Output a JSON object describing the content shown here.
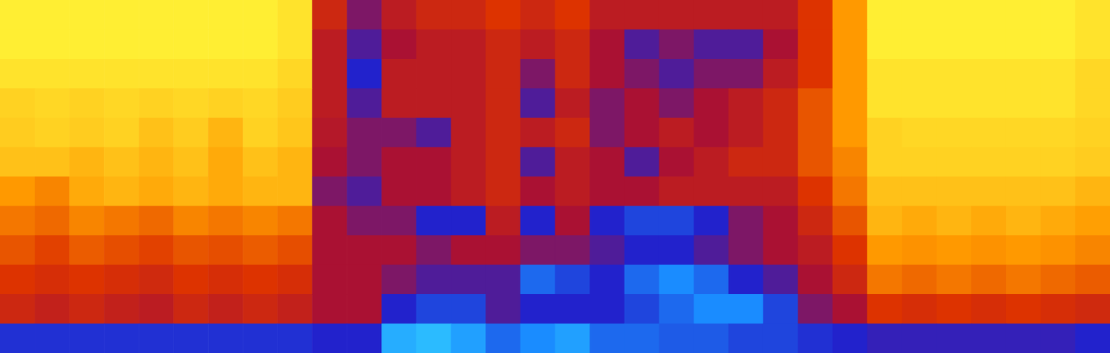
{
  "chart_data": {
    "type": "heatmap",
    "tick_labels": false,
    "zlim": [
      0,
      100
    ],
    "z": [
      [
        90,
        90,
        90,
        90,
        90,
        90,
        90,
        90,
        88,
        55,
        40,
        50,
        55,
        55,
        60,
        55,
        60,
        50,
        50,
        50,
        50,
        50,
        50,
        60,
        75,
        90,
        90,
        90,
        90,
        90,
        90,
        88
      ],
      [
        90,
        90,
        90,
        90,
        90,
        90,
        90,
        90,
        88,
        50,
        35,
        45,
        50,
        50,
        55,
        50,
        55,
        45,
        35,
        40,
        35,
        35,
        45,
        60,
        75,
        90,
        90,
        90,
        90,
        90,
        90,
        88
      ],
      [
        88,
        88,
        88,
        88,
        88,
        88,
        88,
        88,
        86,
        50,
        30,
        50,
        50,
        50,
        55,
        40,
        55,
        45,
        40,
        35,
        40,
        40,
        50,
        60,
        75,
        88,
        88,
        88,
        88,
        88,
        88,
        86
      ],
      [
        85,
        86,
        85,
        86,
        85,
        86,
        85,
        86,
        84,
        50,
        35,
        50,
        50,
        50,
        55,
        35,
        50,
        40,
        45,
        40,
        45,
        50,
        55,
        65,
        75,
        88,
        88,
        88,
        88,
        88,
        88,
        86
      ],
      [
        84,
        85,
        84,
        85,
        82,
        84,
        80,
        85,
        83,
        48,
        40,
        40,
        35,
        50,
        55,
        50,
        55,
        40,
        45,
        50,
        45,
        50,
        55,
        65,
        75,
        85,
        86,
        86,
        86,
        86,
        86,
        85
      ],
      [
        82,
        82,
        80,
        82,
        80,
        82,
        78,
        82,
        80,
        45,
        40,
        45,
        45,
        50,
        55,
        35,
        50,
        45,
        35,
        45,
        50,
        55,
        55,
        65,
        72,
        85,
        85,
        85,
        85,
        85,
        85,
        84
      ],
      [
        75,
        72,
        78,
        80,
        78,
        80,
        78,
        80,
        80,
        40,
        35,
        45,
        45,
        50,
        55,
        45,
        50,
        45,
        45,
        50,
        50,
        50,
        50,
        60,
        70,
        82,
        82,
        82,
        82,
        82,
        82,
        80
      ],
      [
        70,
        68,
        72,
        70,
        68,
        72,
        70,
        72,
        70,
        45,
        40,
        40,
        30,
        30,
        50,
        30,
        45,
        30,
        25,
        25,
        30,
        40,
        45,
        55,
        65,
        80,
        78,
        80,
        78,
        80,
        78,
        76
      ],
      [
        65,
        62,
        66,
        64,
        62,
        65,
        64,
        66,
        64,
        45,
        45,
        45,
        40,
        45,
        45,
        40,
        40,
        35,
        30,
        30,
        35,
        40,
        45,
        50,
        60,
        75,
        74,
        75,
        74,
        75,
        74,
        72
      ],
      [
        60,
        58,
        60,
        58,
        56,
        60,
        58,
        60,
        58,
        45,
        45,
        40,
        35,
        35,
        35,
        20,
        25,
        30,
        20,
        15,
        20,
        30,
        35,
        45,
        55,
        70,
        68,
        70,
        68,
        70,
        68,
        66
      ],
      [
        55,
        52,
        55,
        52,
        50,
        55,
        52,
        55,
        52,
        45,
        45,
        30,
        25,
        25,
        35,
        30,
        30,
        30,
        25,
        20,
        15,
        15,
        25,
        40,
        45,
        60,
        58,
        60,
        58,
        60,
        58,
        56
      ],
      [
        28,
        28,
        28,
        28,
        28,
        28,
        28,
        28,
        28,
        30,
        30,
        10,
        8,
        12,
        20,
        15,
        12,
        20,
        20,
        22,
        22,
        25,
        25,
        28,
        30,
        32,
        32,
        32,
        32,
        32,
        32,
        30
      ]
    ]
  }
}
